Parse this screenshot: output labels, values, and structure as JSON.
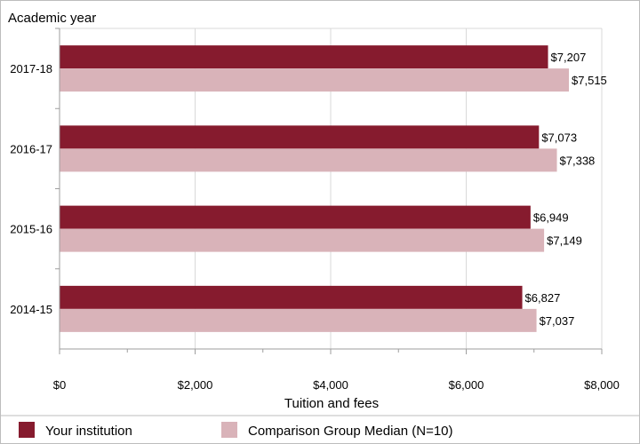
{
  "chart_data": {
    "type": "bar",
    "orientation": "horizontal",
    "categories": [
      "2017-18",
      "2016-17",
      "2015-16",
      "2014-15"
    ],
    "series": [
      {
        "name": "Your institution",
        "color": "#861b2e",
        "values": [
          7207,
          7073,
          6949,
          6827
        ],
        "labels": [
          "$7,207",
          "$7,073",
          "$6,949",
          "$6,827"
        ]
      },
      {
        "name": "Comparison Group Median (N=10)",
        "color": "#d9b3b9",
        "values": [
          7515,
          7338,
          7149,
          7037
        ],
        "labels": [
          "$7,515",
          "$7,338",
          "$7,149",
          "$7,037"
        ]
      }
    ],
    "xlabel": "Tuition and fees",
    "ylabel": "Academic year",
    "xlim": [
      0,
      8000
    ],
    "x_ticks": [
      0,
      2000,
      4000,
      6000,
      8000
    ],
    "x_tick_labels": [
      "$0",
      "$2,000",
      "$4,000",
      "$6,000",
      "$8,000"
    ],
    "grid": true,
    "legend_position": "bottom"
  }
}
